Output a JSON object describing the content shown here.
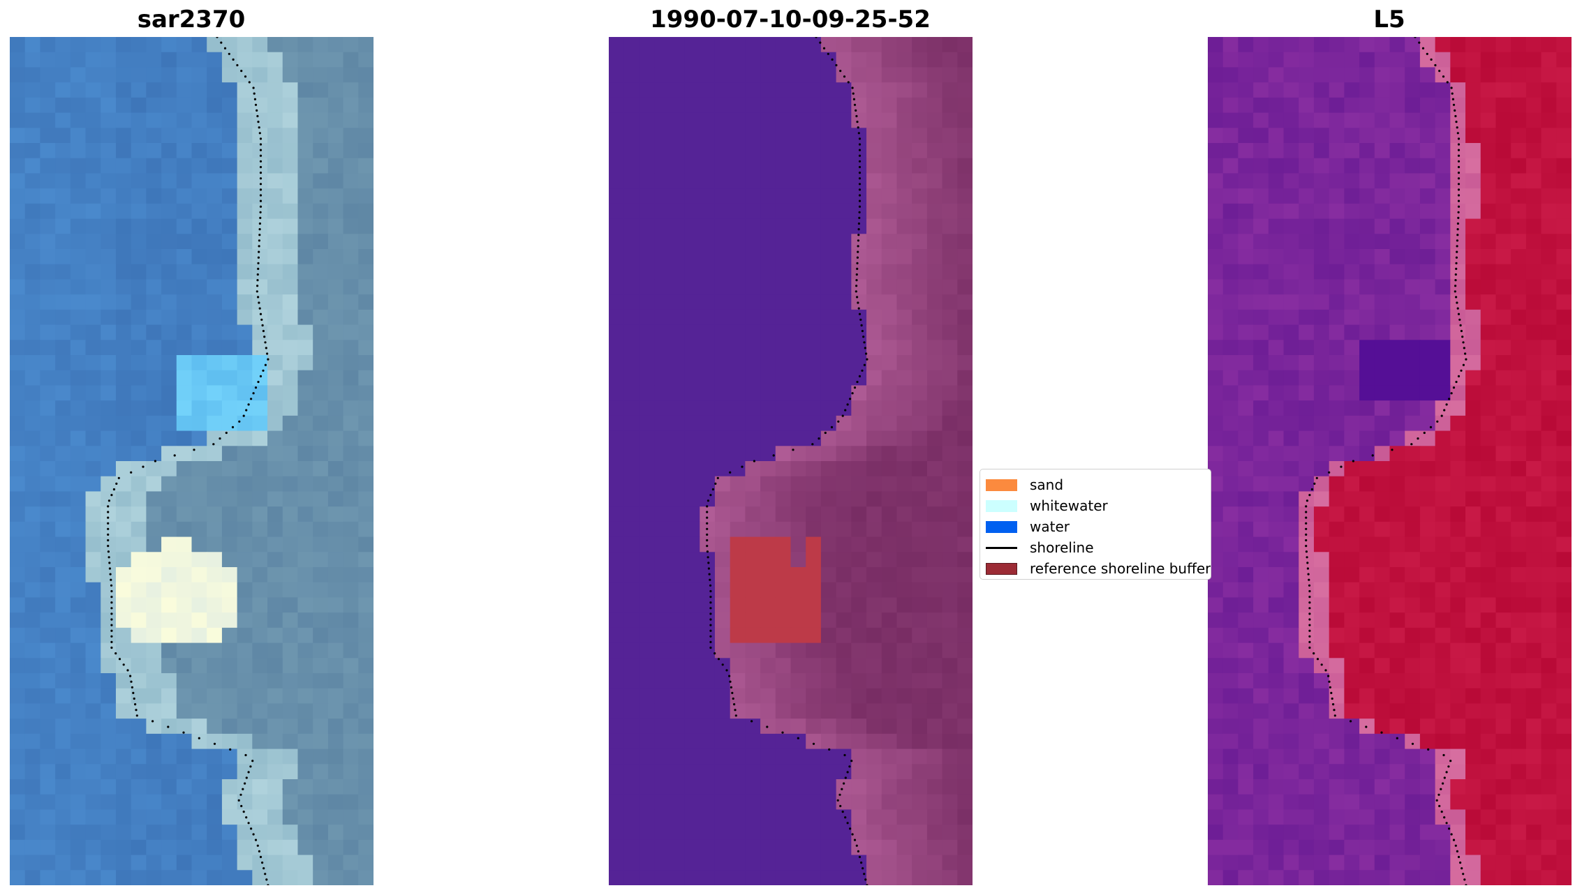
{
  "panels": [
    {
      "title": "sar2370",
      "image": "rgb-satellite"
    },
    {
      "title": "1990-07-10-09-25-52",
      "image": "classified-overlay"
    },
    {
      "title": "L5",
      "image": "index-map"
    }
  ],
  "legend": {
    "items": [
      {
        "label": "sand",
        "color": "#fb8a3e",
        "kind": "patch"
      },
      {
        "label": "whitewater",
        "color": "#ccffff",
        "kind": "patch"
      },
      {
        "label": "water",
        "color": "#0060f0",
        "kind": "patch"
      },
      {
        "label": "shoreline",
        "color": "#000000",
        "kind": "line"
      },
      {
        "label": "reference shoreline buffer",
        "color": "#9c2b35",
        "kind": "patch"
      }
    ]
  },
  "colors": {
    "class_water": "#552396",
    "buffer": "#bd3a48",
    "shoreline_dots": "#000000"
  }
}
